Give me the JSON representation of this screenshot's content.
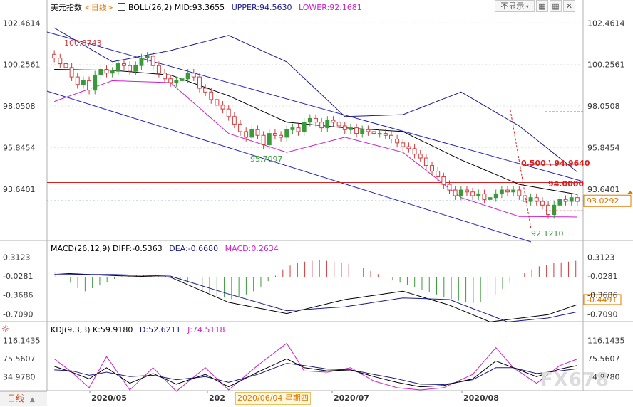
{
  "toolbar": {
    "index_name": "美元指数",
    "period": "<日线>",
    "boll_label": "BOLL(26,2)",
    "mid_label": "MID:93.3655",
    "upper_label": "UPPER:94.5630",
    "lower_label": "LOWER:92.1681",
    "hide_button": "不显示",
    "macd_label": "MACD(26,12,9)",
    "diff_label": "DIFF:-0.5363",
    "dea_label": "DEA:-0.6680",
    "macd_value_label": "MACD:0.2634",
    "kdj_label": "KDJ(9,3,3)",
    "k_label": "K:59.9180",
    "d_label": "D:52.6211",
    "j_label": "J:74.5118",
    "period_tab": "日线",
    "cursor_date": "2020/06/04 星期四",
    "watermark": "FX678"
  },
  "colors": {
    "up": "#3a9a3a",
    "down": "#d23b3b",
    "upper_band": "#1a1a8c",
    "lower_band": "#cc22cc",
    "mid_band": "#000000",
    "channel": "#2222bb",
    "resistance": "#d92020",
    "dea": "#1a1a8c",
    "diff": "#000000",
    "j_line": "#cc22cc"
  },
  "chart_data": [
    {
      "type": "candlestick",
      "name": "price",
      "y_ticks": [
        "102.4614",
        "100.2561",
        "98.0508",
        "95.8454",
        "93.6401"
      ],
      "ylim": [
        91.0,
        103.0
      ],
      "x_labels": [
        "2020/05",
        "202",
        "2020/07",
        "2020/08"
      ],
      "annotations": {
        "high_label": "100.8743",
        "low_label_1": "95.7097",
        "low_label_2": "92.1210",
        "fib_label": "0.500 \\ 94.9640",
        "level_label": "94.0000",
        "last_price": "93.0292"
      },
      "close": [
        100.6,
        100.3,
        100.1,
        99.6,
        99.2,
        99.4,
        98.9,
        99.7,
        100.0,
        99.8,
        99.9,
        100.3,
        100.2,
        99.9,
        100.2,
        100.6,
        100.7,
        100.2,
        99.8,
        99.5,
        99.3,
        99.4,
        99.5,
        99.8,
        99.6,
        99.0,
        98.8,
        98.4,
        98.1,
        97.9,
        97.5,
        97.1,
        96.7,
        96.4,
        96.8,
        96.5,
        96.0,
        96.6,
        96.5,
        96.4,
        96.8,
        96.9,
        96.7,
        97.2,
        97.4,
        97.2,
        96.9,
        97.3,
        97.2,
        97.0,
        96.8,
        96.9,
        96.6,
        96.8,
        96.7,
        96.6,
        96.6,
        96.5,
        96.3,
        96.1,
        95.9,
        95.8,
        95.5,
        95.3,
        94.9,
        94.6,
        94.3,
        93.9,
        93.6,
        93.3,
        93.6,
        93.5,
        93.3,
        93.4,
        93.1,
        93.2,
        93.4,
        93.6,
        93.5,
        93.6,
        93.3,
        93.0,
        93.2,
        93.0,
        92.8,
        92.3,
        92.8,
        93.1,
        93.0,
        93.2,
        93.0
      ],
      "boll_mid_points": [
        [
          0,
          100.0
        ],
        [
          10,
          99.95
        ],
        [
          20,
          99.7
        ],
        [
          30,
          98.6
        ],
        [
          40,
          97.2
        ],
        [
          50,
          96.9
        ],
        [
          60,
          96.7
        ],
        [
          70,
          95.2
        ],
        [
          80,
          93.9
        ],
        [
          90,
          93.37
        ]
      ],
      "boll_upper_points": [
        [
          0,
          102.2
        ],
        [
          10,
          100.4
        ],
        [
          20,
          101.0
        ],
        [
          30,
          101.8
        ],
        [
          40,
          100.4
        ],
        [
          50,
          97.5
        ],
        [
          60,
          97.6
        ],
        [
          70,
          98.8
        ],
        [
          80,
          97.0
        ],
        [
          90,
          94.56
        ]
      ],
      "boll_lower_points": [
        [
          0,
          98.3
        ],
        [
          10,
          99.4
        ],
        [
          20,
          99.3
        ],
        [
          30,
          96.6
        ],
        [
          40,
          95.6
        ],
        [
          50,
          96.4
        ],
        [
          60,
          95.6
        ],
        [
          70,
          93.2
        ],
        [
          80,
          92.2
        ],
        [
          90,
          92.17
        ]
      ]
    },
    {
      "type": "macd",
      "name": "MACD(26,12,9)",
      "y_ticks": [
        "0.3123",
        "-0.0281",
        "-0.3686",
        "-0.7090"
      ],
      "ylim": [
        -0.82,
        0.38
      ],
      "current_label": "-0.4491",
      "diff_points": [
        [
          0,
          0.03
        ],
        [
          10,
          -0.02
        ],
        [
          20,
          -0.05
        ],
        [
          30,
          -0.5
        ],
        [
          40,
          -0.7
        ],
        [
          50,
          -0.45
        ],
        [
          60,
          -0.3
        ],
        [
          68,
          -0.55
        ],
        [
          75,
          -0.85
        ],
        [
          85,
          -0.72
        ],
        [
          90,
          -0.54
        ]
      ],
      "dea_points": [
        [
          0,
          0.0
        ],
        [
          10,
          0.0
        ],
        [
          20,
          -0.03
        ],
        [
          30,
          -0.35
        ],
        [
          40,
          -0.65
        ],
        [
          50,
          -0.58
        ],
        [
          60,
          -0.42
        ],
        [
          68,
          -0.45
        ],
        [
          78,
          -0.85
        ],
        [
          85,
          -0.78
        ],
        [
          90,
          -0.67
        ]
      ],
      "histogram": [
        0.05,
        0.0,
        -0.07,
        -0.14,
        -0.18,
        -0.14,
        -0.1,
        -0.06,
        -0.02,
        0.01,
        0.02,
        0.03,
        0.03,
        0.02,
        0.02,
        0.02,
        0.0,
        -0.03,
        -0.07,
        -0.12,
        -0.16,
        -0.2,
        -0.24,
        -0.26,
        -0.28,
        -0.26,
        -0.22,
        -0.18,
        -0.12,
        -0.05,
        0.02,
        0.1,
        0.15,
        0.18,
        0.2,
        0.21,
        0.22,
        0.21,
        0.2,
        0.18,
        0.17,
        0.15,
        0.12,
        0.08,
        0.04,
        0.0,
        -0.04,
        -0.07,
        -0.1,
        -0.13,
        -0.16,
        -0.19,
        -0.22,
        -0.25,
        -0.28,
        -0.3,
        -0.32,
        -0.33,
        -0.32,
        -0.28,
        -0.22,
        -0.15,
        -0.07,
        0.0,
        0.06,
        0.1,
        0.14,
        0.16,
        0.18,
        0.19,
        0.2,
        0.21
      ]
    },
    {
      "type": "kdj",
      "name": "KDJ(9,3,3)",
      "y_ticks": [
        "116.1435",
        "75.5607",
        "34.9780"
      ],
      "ylim": [
        5.0,
        130.0
      ],
      "k_points": [
        [
          0,
          58
        ],
        [
          3,
          45
        ],
        [
          6,
          30
        ],
        [
          9,
          55
        ],
        [
          13,
          20
        ],
        [
          17,
          42
        ],
        [
          21,
          18
        ],
        [
          26,
          40
        ],
        [
          30,
          12
        ],
        [
          35,
          45
        ],
        [
          40,
          75
        ],
        [
          43,
          55
        ],
        [
          47,
          48
        ],
        [
          51,
          50
        ],
        [
          55,
          35
        ],
        [
          59,
          22
        ],
        [
          63,
          12
        ],
        [
          67,
          15
        ],
        [
          72,
          30
        ],
        [
          76,
          70
        ],
        [
          79,
          55
        ],
        [
          83,
          35
        ],
        [
          87,
          52
        ],
        [
          90,
          59.9
        ]
      ],
      "d_points": [
        [
          0,
          50
        ],
        [
          3,
          48
        ],
        [
          6,
          38
        ],
        [
          9,
          45
        ],
        [
          13,
          35
        ],
        [
          17,
          38
        ],
        [
          21,
          28
        ],
        [
          26,
          35
        ],
        [
          30,
          22
        ],
        [
          35,
          40
        ],
        [
          40,
          65
        ],
        [
          43,
          60
        ],
        [
          47,
          52
        ],
        [
          51,
          50
        ],
        [
          55,
          40
        ],
        [
          59,
          30
        ],
        [
          63,
          18
        ],
        [
          67,
          17
        ],
        [
          72,
          28
        ],
        [
          76,
          55
        ],
        [
          79,
          55
        ],
        [
          83,
          42
        ],
        [
          87,
          48
        ],
        [
          90,
          52.6
        ]
      ],
      "j_points": [
        [
          0,
          75
        ],
        [
          3,
          45
        ],
        [
          6,
          10
        ],
        [
          9,
          80
        ],
        [
          13,
          5
        ],
        [
          17,
          55
        ],
        [
          21,
          2
        ],
        [
          26,
          55
        ],
        [
          30,
          5
        ],
        [
          35,
          60
        ],
        [
          40,
          110
        ],
        [
          43,
          48
        ],
        [
          47,
          45
        ],
        [
          51,
          55
        ],
        [
          55,
          25
        ],
        [
          59,
          10
        ],
        [
          63,
          5
        ],
        [
          67,
          10
        ],
        [
          72,
          40
        ],
        [
          76,
          100
        ],
        [
          79,
          55
        ],
        [
          83,
          20
        ],
        [
          87,
          60
        ],
        [
          90,
          74.5
        ]
      ]
    }
  ]
}
